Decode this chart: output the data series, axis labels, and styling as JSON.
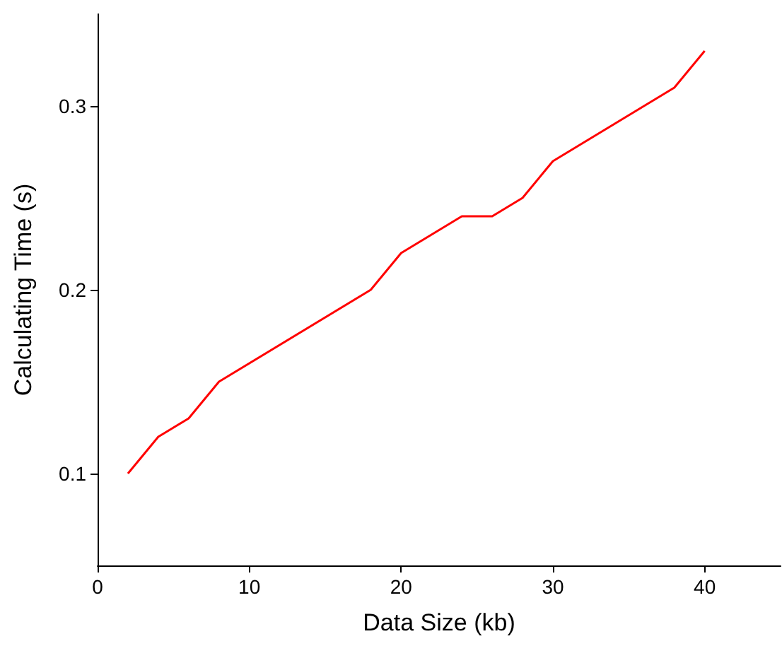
{
  "chart_data": {
    "type": "line",
    "xlabel": "Data Size (kb)",
    "ylabel": "Calculating Time (s)",
    "x": [
      2,
      4,
      6,
      8,
      18,
      20,
      24,
      26,
      28,
      30,
      38,
      40
    ],
    "series": [
      {
        "color": "#ff0000",
        "values": [
          0.1,
          0.12,
          0.13,
          0.15,
          0.2,
          0.22,
          0.24,
          0.24,
          0.25,
          0.27,
          0.31,
          0.33
        ]
      }
    ],
    "xlim": [
      0,
      45
    ],
    "xticks": [
      0,
      10,
      20,
      30,
      40
    ],
    "ylim": [
      0.05,
      0.35
    ],
    "yticks": [
      0.1,
      0.2,
      0.3
    ],
    "grid": false,
    "marker": "none",
    "line_style": "solid"
  }
}
